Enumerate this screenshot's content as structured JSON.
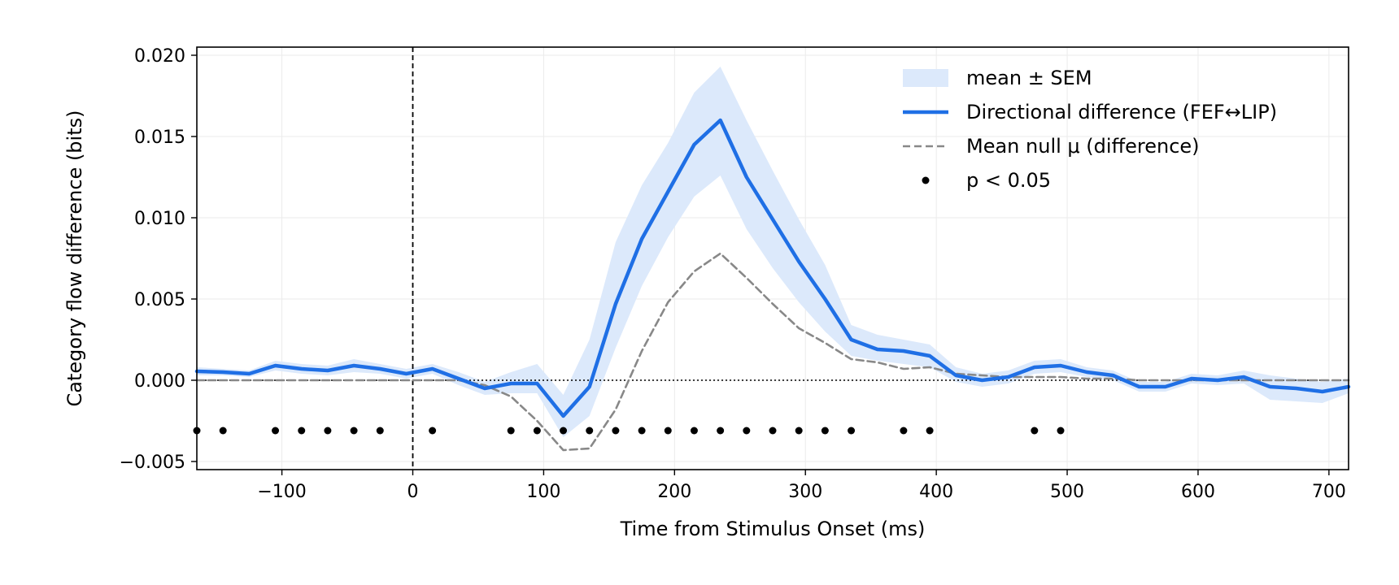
{
  "chart_data": {
    "type": "line",
    "title": "",
    "xlabel": "Time from Stimulus Onset (ms)",
    "ylabel": "Category flow difference (bits)",
    "xlim": [
      -165,
      715
    ],
    "ylim": [
      -0.0055,
      0.0205
    ],
    "xticks": [
      -100,
      0,
      100,
      200,
      300,
      400,
      500,
      600,
      700
    ],
    "xtick_labels": [
      "−100",
      "0",
      "100",
      "200",
      "300",
      "400",
      "500",
      "600",
      "700"
    ],
    "yticks": [
      -0.005,
      0.0,
      0.005,
      0.01,
      0.015,
      0.02
    ],
    "ytick_labels": [
      "−0.005",
      "0.000",
      "0.005",
      "0.010",
      "0.015",
      "0.020"
    ],
    "grid": true,
    "legend_position": "top-right",
    "zero_time_line": 0,
    "zero_value_line": 0,
    "x": [
      -165,
      -145,
      -125,
      -105,
      -85,
      -65,
      -45,
      -25,
      -5,
      15,
      35,
      55,
      75,
      95,
      115,
      135,
      155,
      175,
      195,
      215,
      235,
      255,
      275,
      295,
      315,
      335,
      355,
      375,
      395,
      415,
      435,
      455,
      475,
      495,
      515,
      535,
      555,
      575,
      595,
      615,
      635,
      655,
      675,
      695,
      715
    ],
    "series": [
      {
        "name": "Directional difference (FEF↔LIP)",
        "color": "#1f6fe5",
        "style": "solid",
        "values": [
          0.00055,
          0.0005,
          0.0004,
          0.0009,
          0.0007,
          0.0006,
          0.0009,
          0.0007,
          0.0004,
          0.0007,
          0.0001,
          -0.0005,
          -0.0002,
          -0.0002,
          -0.0022,
          -0.0004,
          0.0047,
          0.0087,
          0.0116,
          0.0145,
          0.016,
          0.0125,
          0.0099,
          0.0073,
          0.005,
          0.0025,
          0.0019,
          0.0018,
          0.0015,
          0.0003,
          0.0,
          0.0002,
          0.0008,
          0.0009,
          0.0005,
          0.0003,
          -0.0004,
          -0.0004,
          0.0001,
          0.0,
          0.0002,
          -0.0004,
          -0.0005,
          -0.0007,
          -0.0004
        ]
      },
      {
        "name": "Mean null μ (difference)",
        "color": "#888888",
        "style": "dashed",
        "values": [
          0.0,
          0.0,
          0.0,
          0.0,
          0.0,
          0.0,
          0.0,
          0.0,
          0.0,
          0.0,
          0.0,
          -0.0003,
          -0.001,
          -0.0025,
          -0.0043,
          -0.0042,
          -0.0018,
          0.0018,
          0.0048,
          0.0067,
          0.0078,
          0.0063,
          0.0047,
          0.0032,
          0.0023,
          0.0013,
          0.0011,
          0.0007,
          0.0008,
          0.0004,
          0.0003,
          0.0002,
          0.0002,
          0.0002,
          0.0001,
          0.0001,
          0.0,
          0.0,
          0.0,
          0.0,
          0.0,
          0.0,
          0.0,
          0.0,
          0.0
        ]
      }
    ],
    "sem_band": {
      "name": "mean ± SEM",
      "color": "#dce9fb",
      "lower": [
        0.0003,
        0.0003,
        0.0002,
        0.0006,
        0.0004,
        0.0003,
        0.0005,
        0.0004,
        0.0001,
        0.0004,
        -0.0003,
        -0.0009,
        -0.0008,
        -0.0008,
        -0.0035,
        -0.0022,
        0.002,
        0.0058,
        0.0088,
        0.0113,
        0.0126,
        0.0093,
        0.0069,
        0.0048,
        0.003,
        0.0015,
        0.0012,
        0.001,
        0.0008,
        -0.0001,
        -0.0004,
        -0.0002,
        0.0004,
        0.0005,
        0.0002,
        0.0,
        -0.0007,
        -0.0007,
        -0.0002,
        -0.0003,
        -0.0002,
        -0.0012,
        -0.0013,
        -0.0014,
        -0.0008
      ],
      "upper": [
        0.0008,
        0.0007,
        0.0006,
        0.0012,
        0.001,
        0.0009,
        0.0013,
        0.001,
        0.0007,
        0.001,
        0.0005,
        -0.0001,
        0.0005,
        0.001,
        -0.0009,
        0.0025,
        0.0085,
        0.012,
        0.0146,
        0.0177,
        0.0193,
        0.016,
        0.0129,
        0.0099,
        0.0071,
        0.0034,
        0.0028,
        0.0025,
        0.0022,
        0.0008,
        0.0004,
        0.0006,
        0.0012,
        0.0013,
        0.0008,
        0.0006,
        -0.0001,
        -0.0001,
        0.0004,
        0.0003,
        0.0006,
        0.0003,
        0.0001,
        -0.0001,
        0.0001
      ]
    },
    "significant_points": {
      "name": "p < 0.05",
      "color": "#000000",
      "y": -0.0031,
      "x": [
        -165,
        -145,
        -105,
        -85,
        -65,
        -45,
        -25,
        15,
        75,
        95,
        115,
        135,
        155,
        175,
        195,
        215,
        235,
        255,
        275,
        295,
        315,
        335,
        375,
        395,
        475,
        495
      ]
    },
    "legend": [
      {
        "label": "mean ± SEM",
        "kind": "band"
      },
      {
        "label": "Directional difference (FEF↔LIP)",
        "kind": "line"
      },
      {
        "label": "Mean null μ (difference)",
        "kind": "dash"
      },
      {
        "label": "p < 0.05",
        "kind": "dot"
      }
    ]
  }
}
